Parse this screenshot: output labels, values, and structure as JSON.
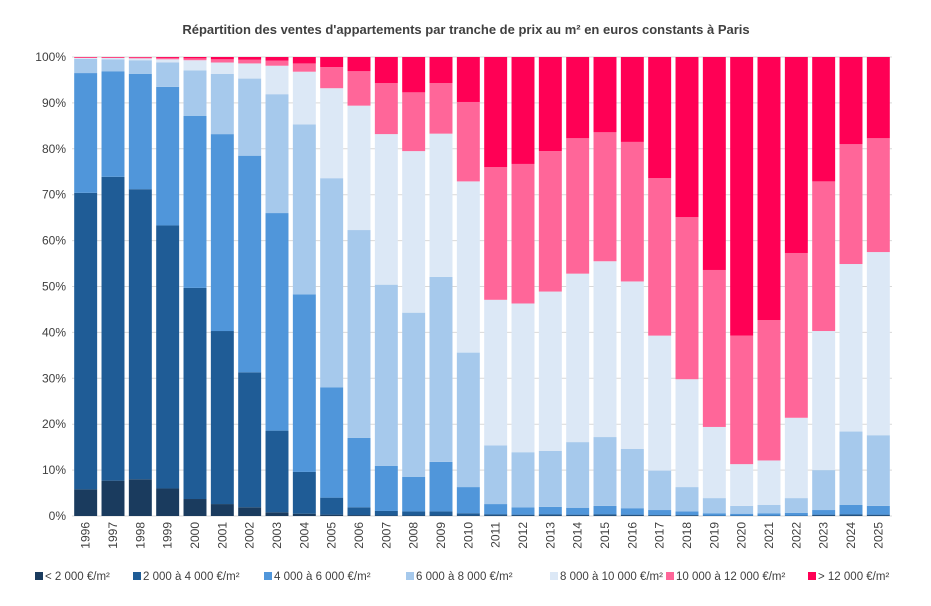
{
  "chart_data": {
    "type": "bar",
    "stacked": "percent",
    "title": "Répartition des ventes d'appartements par tranche de prix au m² en euros constants à Paris",
    "xlabel": "",
    "ylabel": "",
    "ylim": [
      0,
      100
    ],
    "y_ticks": [
      "0%",
      "10%",
      "20%",
      "30%",
      "40%",
      "50%",
      "60%",
      "70%",
      "80%",
      "90%",
      "100%"
    ],
    "grid": true,
    "legend_position": "bottom",
    "categories": [
      "1996",
      "1997",
      "1998",
      "1999",
      "2000",
      "2001",
      "2002",
      "2003",
      "2004",
      "2005",
      "2006",
      "2007",
      "2008",
      "2009",
      "2010",
      "2011",
      "2012",
      "2013",
      "2014",
      "2015",
      "2016",
      "2017",
      "2018",
      "2019",
      "2020",
      "2021",
      "2022",
      "2023",
      "2024",
      "2025"
    ],
    "series": [
      {
        "name": "< 2 000 €/m²",
        "color": "#1a3b5e",
        "values": [
          5.8,
          7.7,
          8.0,
          6.0,
          3.7,
          2.6,
          1.9,
          0.8,
          0.5,
          0.3,
          0.2,
          0.1,
          0.1,
          0.1,
          0.1,
          0.1,
          0.1,
          0.1,
          0.1,
          0.1,
          0.1,
          0.1,
          0.1,
          0.0,
          0.0,
          0.0,
          0.0,
          0.1,
          0.1,
          0.1
        ]
      },
      {
        "name": "2 000 à 4 000 €/m²",
        "color": "#1f5c96",
        "values": [
          64.6,
          66.2,
          63.2,
          57.3,
          46.0,
          37.7,
          29.4,
          17.8,
          9.1,
          3.7,
          1.7,
          1.0,
          0.9,
          0.9,
          0.5,
          0.3,
          0.2,
          0.3,
          0.2,
          0.3,
          0.2,
          0.1,
          0.1,
          0.1,
          0.1,
          0.1,
          0.1,
          0.2,
          0.3,
          0.2
        ]
      },
      {
        "name": "4 000 à 6 000 €/m²",
        "color": "#5096da",
        "values": [
          26.1,
          23.0,
          25.1,
          30.2,
          37.5,
          42.9,
          47.2,
          47.4,
          38.7,
          24.0,
          15.1,
          9.8,
          7.5,
          10.8,
          5.7,
          2.2,
          1.6,
          1.6,
          1.5,
          1.8,
          1.4,
          1.1,
          0.8,
          0.5,
          0.4,
          0.5,
          0.6,
          1.0,
          2.0,
          1.9
        ]
      },
      {
        "name": "6 000 à 8 000 €/m²",
        "color": "#a6c9ec",
        "values": [
          3.1,
          2.6,
          3.0,
          5.3,
          9.9,
          13.1,
          16.8,
          25.9,
          37.0,
          45.6,
          45.3,
          39.5,
          35.8,
          40.3,
          29.3,
          12.8,
          12.0,
          12.2,
          14.3,
          15.0,
          12.9,
          8.6,
          5.3,
          3.3,
          1.7,
          1.8,
          3.2,
          8.7,
          16.0,
          15.4
        ]
      },
      {
        "name": "8 000 à 10 000 €/m²",
        "color": "#dce8f6",
        "values": [
          0.2,
          0.3,
          0.4,
          0.7,
          2.2,
          2.5,
          3.3,
          6.2,
          11.5,
          19.6,
          27.1,
          32.8,
          35.2,
          31.2,
          37.3,
          31.7,
          32.4,
          34.7,
          36.7,
          38.3,
          36.5,
          29.4,
          23.5,
          15.5,
          9.1,
          9.7,
          17.5,
          30.3,
          36.5,
          39.9
        ]
      },
      {
        "name": "10 000 à 12 000 €/m²",
        "color": "#ff6699",
        "values": [
          0.1,
          0.1,
          0.2,
          0.3,
          0.4,
          0.7,
          0.8,
          1.1,
          1.8,
          4.6,
          7.5,
          11.1,
          12.8,
          11.0,
          17.3,
          28.9,
          30.4,
          30.6,
          29.5,
          28.1,
          30.4,
          34.3,
          35.3,
          34.2,
          28.0,
          30.6,
          35.9,
          32.6,
          26.1,
          24.8
        ]
      },
      {
        "name": "> 12 000 €/m²",
        "color": "#ff0055",
        "values": [
          0.1,
          0.1,
          0.1,
          0.2,
          0.3,
          0.5,
          0.6,
          0.8,
          1.4,
          2.2,
          3.1,
          5.7,
          7.7,
          5.7,
          9.8,
          24.0,
          23.3,
          20.5,
          17.7,
          16.4,
          18.5,
          26.4,
          34.9,
          46.4,
          60.7,
          57.3,
          42.7,
          27.1,
          19.0,
          17.7
        ]
      }
    ]
  }
}
